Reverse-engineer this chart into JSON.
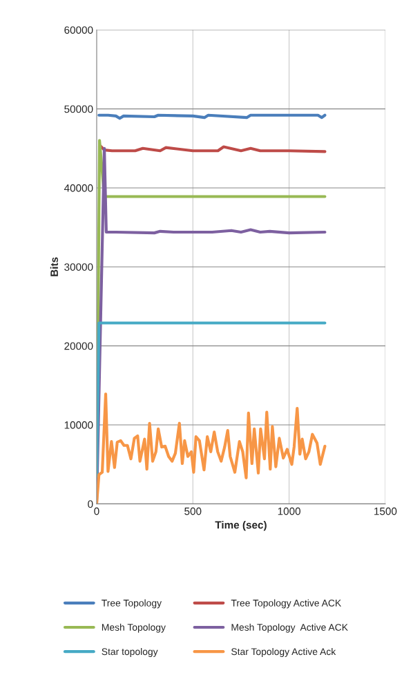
{
  "chart_data": {
    "type": "line",
    "xlabel": "Time (sec)",
    "ylabel": "Bits",
    "xlim": [
      0,
      1500
    ],
    "xticks": [
      0,
      500,
      1000,
      1500
    ],
    "ylim": [
      0,
      60000
    ],
    "yticks": [
      0,
      10000,
      20000,
      30000,
      40000,
      50000,
      60000
    ],
    "grid": true,
    "legend": "bottom",
    "marker": "none",
    "line_style": "solid",
    "series": [
      {
        "name": "Tree Topology",
        "color": "#4a7ebb",
        "x": [
          12,
          60,
          100,
          120,
          140,
          300,
          320,
          500,
          560,
          580,
          780,
          800,
          1150,
          1170,
          1186
        ],
        "values": [
          49200,
          49200,
          49100,
          48800,
          49100,
          49000,
          49200,
          49100,
          48900,
          49200,
          48900,
          49200,
          49200,
          48900,
          49200
        ]
      },
      {
        "name": "Tree Topology Active ACK",
        "color": "#be4b48",
        "x": [
          20,
          40,
          80,
          200,
          240,
          330,
          360,
          500,
          600,
          630,
          660,
          750,
          800,
          850,
          1000,
          1186
        ],
        "values": [
          45300,
          44800,
          44700,
          44700,
          45000,
          44700,
          45100,
          44700,
          44700,
          44700,
          45200,
          44700,
          45000,
          44700,
          44700,
          44600
        ]
      },
      {
        "name": "Mesh Topology",
        "color": "#98b954",
        "x": [
          0,
          15,
          40,
          1186
        ],
        "values": [
          0,
          46000,
          38900,
          38900
        ]
      },
      {
        "name": "Mesh Topology  Active ACK",
        "color": "#7d60a0",
        "x": [
          0,
          40,
          50,
          100,
          300,
          330,
          400,
          600,
          700,
          750,
          800,
          850,
          900,
          1000,
          1186
        ],
        "values": [
          0,
          45000,
          34400,
          34400,
          34300,
          34500,
          34400,
          34400,
          34600,
          34400,
          34700,
          34400,
          34500,
          34300,
          34400
        ]
      },
      {
        "name": "Star topology",
        "color": "#46aac5",
        "x": [
          0,
          12,
          1186
        ],
        "values": [
          3500,
          22900,
          22900
        ]
      },
      {
        "name": "Star Topology Active Ack",
        "color": "#f79646",
        "x": [
          0,
          12,
          29,
          47,
          59,
          77,
          93,
          107,
          125,
          142,
          160,
          178,
          196,
          213,
          225,
          249,
          261,
          275,
          291,
          308,
          320,
          338,
          356,
          374,
          392,
          409,
          430,
          445,
          457,
          474,
          492,
          504,
          516,
          534,
          558,
          575,
          593,
          611,
          629,
          647,
          665,
          681,
          694,
          718,
          742,
          759,
          777,
          789,
          807,
          819,
          840,
          852,
          872,
          884,
          902,
          913,
          931,
          949,
          970,
          990,
          1014,
          1026,
          1042,
          1056,
          1068,
          1086,
          1103,
          1121,
          1145,
          1162,
          1186
        ],
        "values": [
          0,
          3700,
          4000,
          13900,
          4100,
          7900,
          4600,
          7800,
          8000,
          7400,
          7400,
          5700,
          8300,
          8600,
          5400,
          8200,
          4400,
          10200,
          5400,
          6600,
          9500,
          7200,
          7300,
          6000,
          5400,
          6400,
          10200,
          5100,
          8000,
          6000,
          6600,
          4000,
          8500,
          8000,
          4300,
          8500,
          6600,
          9100,
          6600,
          5400,
          7200,
          9300,
          6000,
          4000,
          7900,
          6600,
          3300,
          11500,
          5100,
          9500,
          3900,
          9500,
          5700,
          11600,
          4400,
          9800,
          4700,
          8300,
          5800,
          6900,
          5000,
          7200,
          12100,
          6300,
          8200,
          5700,
          6600,
          8800,
          7700,
          5000,
          7300
        ]
      }
    ]
  }
}
